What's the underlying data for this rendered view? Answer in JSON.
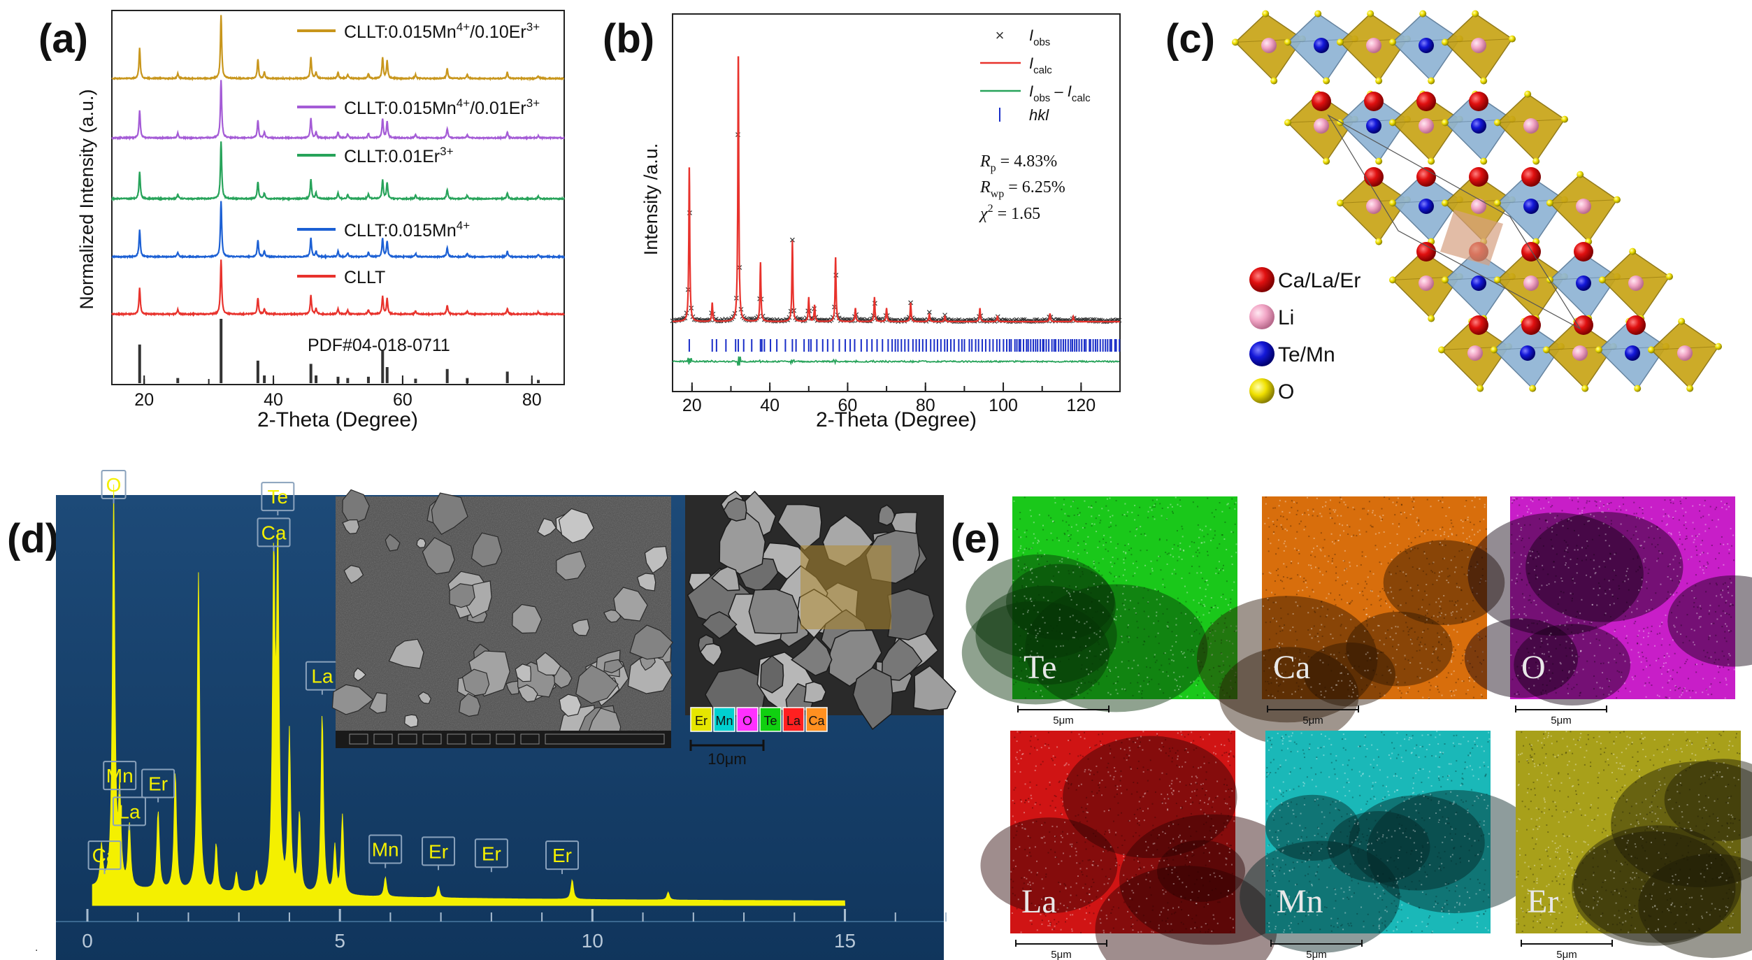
{
  "chart_data": [
    {
      "panel": "(a)",
      "type": "line",
      "xlabel": "2-Theta (Degree)",
      "ylabel": "Normalized Intensity (a.u.)",
      "xlim": [
        15,
        85
      ],
      "x_ticks": [
        20,
        40,
        60,
        80
      ],
      "reference": {
        "name": "PDF#04-018-0711",
        "color": "#333333",
        "peaks": [
          [
            19.3,
            0.6
          ],
          [
            25.2,
            0.08
          ],
          [
            31.9,
            1.0
          ],
          [
            37.6,
            0.35
          ],
          [
            38.6,
            0.12
          ],
          [
            45.8,
            0.3
          ],
          [
            46.6,
            0.12
          ],
          [
            50.0,
            0.1
          ],
          [
            51.5,
            0.08
          ],
          [
            54.7,
            0.1
          ],
          [
            56.9,
            0.5
          ],
          [
            57.6,
            0.25
          ],
          [
            62.0,
            0.07
          ],
          [
            66.9,
            0.22
          ],
          [
            70.0,
            0.08
          ],
          [
            76.2,
            0.18
          ],
          [
            81.0,
            0.05
          ]
        ]
      },
      "series": [
        {
          "name": "CLLT",
          "color": "#e8322c"
        },
        {
          "name": "CLLT:0.015Mn",
          "superscript": "4+",
          "color": "#1c60d4"
        },
        {
          "name": "CLLT:0.01Er",
          "superscript": "3+",
          "color": "#27a35a"
        },
        {
          "name": "CLLT:0.015Mn",
          "superscript": "4+",
          "name2": "/0.01Er",
          "superscript2": "3+",
          "color": "#a45bd6"
        },
        {
          "name": "CLLT:0.015Mn",
          "superscript": "4+",
          "name2": "/0.10Er",
          "superscript2": "3+",
          "color": "#c8961c"
        }
      ],
      "peaks": [
        [
          19.3,
          0.48
        ],
        [
          25.2,
          0.08
        ],
        [
          31.9,
          1.0
        ],
        [
          37.6,
          0.3
        ],
        [
          38.6,
          0.1
        ],
        [
          45.8,
          0.34
        ],
        [
          46.6,
          0.1
        ],
        [
          50.0,
          0.1
        ],
        [
          51.5,
          0.07
        ],
        [
          54.7,
          0.08
        ],
        [
          56.9,
          0.33
        ],
        [
          57.6,
          0.28
        ],
        [
          62.0,
          0.06
        ],
        [
          66.9,
          0.16
        ],
        [
          70.0,
          0.06
        ],
        [
          76.2,
          0.1
        ],
        [
          81.0,
          0.04
        ]
      ]
    },
    {
      "panel": "(b)",
      "type": "line",
      "xlabel": "2-Theta (Degree)",
      "ylabel": "Intensity /a.u.",
      "xlim": [
        15,
        130
      ],
      "x_ticks": [
        20,
        40,
        60,
        80,
        100,
        120
      ],
      "legend": [
        {
          "label": "I",
          "sub": "obs",
          "marker": "×",
          "color": "#333333"
        },
        {
          "label": "I",
          "sub": "calc",
          "color": "#e8322c"
        },
        {
          "label": "I",
          "sub": "obs",
          "mid": " – I",
          "sub2": "calc",
          "color": "#27a35a"
        },
        {
          "label": "hkl",
          "color": "#1a2ec8"
        }
      ],
      "stats": [
        {
          "sym": "R",
          "sub": "p",
          "value": " = 4.83%"
        },
        {
          "sym": "R",
          "sub": "wp",
          "value": " = 6.25%"
        },
        {
          "sym": "χ",
          "sup": "2",
          "value": " = 1.65"
        }
      ],
      "peaks": [
        [
          19.3,
          0.58
        ],
        [
          25.2,
          0.07
        ],
        [
          31.9,
          1.0
        ],
        [
          37.6,
          0.22
        ],
        [
          45.8,
          0.3
        ],
        [
          50.0,
          0.09
        ],
        [
          51.5,
          0.06
        ],
        [
          56.9,
          0.24
        ],
        [
          62.0,
          0.05
        ],
        [
          66.9,
          0.09
        ],
        [
          70.0,
          0.05
        ],
        [
          76.2,
          0.07
        ],
        [
          81.0,
          0.03
        ],
        [
          85.0,
          0.02
        ],
        [
          94.0,
          0.05
        ],
        [
          98.5,
          0.02
        ],
        [
          112.0,
          0.03
        ],
        [
          118.0,
          0.02
        ]
      ]
    },
    {
      "panel": "(c)",
      "type": "diagram",
      "legend": [
        {
          "label": "Ca/La/Er",
          "color": "#e01010"
        },
        {
          "label": "Li",
          "color": "#f2a6c6"
        },
        {
          "label": "Te/Mn",
          "color": "#1418d8"
        },
        {
          "label": "O",
          "color": "#f0e000"
        }
      ]
    },
    {
      "panel": "(d)",
      "type": "line",
      "xlim": [
        0,
        17
      ],
      "x_ticks": [
        0,
        5,
        10,
        15
      ],
      "labels": [
        {
          "text": "O",
          "x": 0.52,
          "h": 1.0
        },
        {
          "text": "Te",
          "x": 3.77,
          "h": 0.97
        },
        {
          "text": "Ca",
          "x": 3.69,
          "h": 0.88
        },
        {
          "text": "La",
          "x": 4.65,
          "h": 0.52
        },
        {
          "text": "Mn",
          "x": 0.64,
          "h": 0.27
        },
        {
          "text": "Er",
          "x": 1.4,
          "h": 0.25
        },
        {
          "text": "La",
          "x": 0.83,
          "h": 0.18
        },
        {
          "text": "Ca",
          "x": 0.34,
          "h": 0.07
        },
        {
          "text": "Mn",
          "x": 5.9,
          "h": 0.085
        },
        {
          "text": "Er",
          "x": 6.95,
          "h": 0.08
        },
        {
          "text": "Er",
          "x": 8.0,
          "h": 0.075
        },
        {
          "text": "Er",
          "x": 9.4,
          "h": 0.07
        }
      ],
      "peaks": [
        [
          0.28,
          0.1
        ],
        [
          0.52,
          1.0
        ],
        [
          0.64,
          0.22
        ],
        [
          0.83,
          0.16
        ],
        [
          1.4,
          0.2
        ],
        [
          1.74,
          0.3
        ],
        [
          2.2,
          0.8
        ],
        [
          2.55,
          0.12
        ],
        [
          2.95,
          0.05
        ],
        [
          3.35,
          0.05
        ],
        [
          3.69,
          0.82
        ],
        [
          3.77,
          0.85
        ],
        [
          4.0,
          0.4
        ],
        [
          4.2,
          0.2
        ],
        [
          4.65,
          0.46
        ],
        [
          4.9,
          0.12
        ],
        [
          5.05,
          0.2
        ],
        [
          5.9,
          0.05
        ],
        [
          6.95,
          0.03
        ],
        [
          9.6,
          0.05
        ],
        [
          11.5,
          0.02
        ]
      ],
      "elements": [
        {
          "label": "Er",
          "bg": "#e6e600"
        },
        {
          "label": "Mn",
          "bg": "#00d0d0"
        },
        {
          "label": "O",
          "bg": "#ff30ff"
        },
        {
          "label": "Te",
          "bg": "#10d010"
        },
        {
          "label": "La",
          "bg": "#ff2020"
        },
        {
          "label": "Ca",
          "bg": "#ff9020"
        }
      ],
      "scale_bar": "10μm"
    },
    {
      "panel": "(e)",
      "type": "heatmap",
      "maps": [
        {
          "label": "Te",
          "color": "#1ac81a",
          "dark": "#063006",
          "scale": "5μm"
        },
        {
          "label": "Ca",
          "color": "#d86e0c",
          "dark": "#2a1402",
          "scale": "5μm"
        },
        {
          "label": "O",
          "color": "#c81ec8",
          "dark": "#100010",
          "scale": "5μm"
        },
        {
          "label": "La",
          "color": "#d01414",
          "dark": "#2a0202",
          "scale": "5μm"
        },
        {
          "label": "Mn",
          "color": "#1ab8b8",
          "dark": "#042424",
          "scale": "5μm"
        },
        {
          "label": "Er",
          "color": "#a8a01a",
          "dark": "#1a1806",
          "scale": "5μm"
        }
      ]
    }
  ]
}
